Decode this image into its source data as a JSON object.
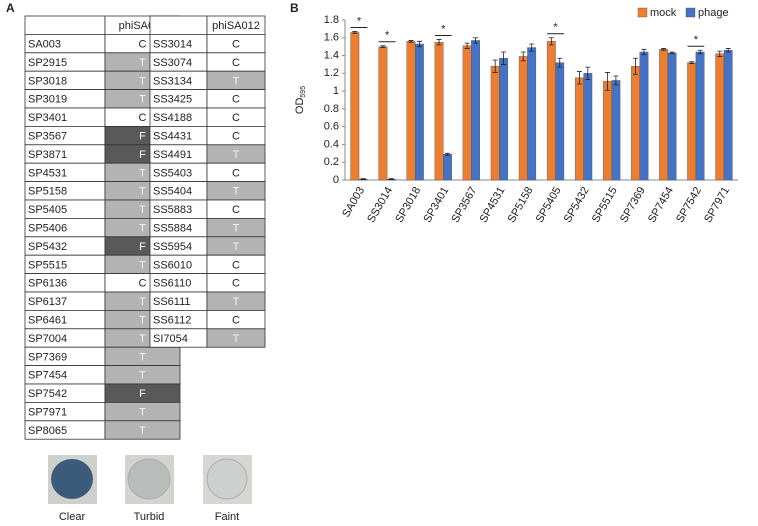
{
  "panel_a": {
    "label": "A",
    "header": "phiSA012",
    "shades": {
      "C": "#ffffff",
      "T": "#b3b3b3",
      "F": "#595959"
    },
    "table_left": [
      [
        "SA003",
        "C"
      ],
      [
        "SP2915",
        "T"
      ],
      [
        "SP3018",
        "T"
      ],
      [
        "SP3019",
        "T"
      ],
      [
        "SP3401",
        "C"
      ],
      [
        "SP3567",
        "F"
      ],
      [
        "SP3871",
        "F"
      ],
      [
        "SP4531",
        "T"
      ],
      [
        "SP5158",
        "T"
      ],
      [
        "SP5405",
        "T"
      ],
      [
        "SP5406",
        "T"
      ],
      [
        "SP5432",
        "F"
      ],
      [
        "SP5515",
        "T"
      ],
      [
        "SP6136",
        "C"
      ],
      [
        "SP6137",
        "T"
      ],
      [
        "SP6461",
        "T"
      ],
      [
        "SP7004",
        "T"
      ],
      [
        "SP7369",
        "T"
      ],
      [
        "SP7454",
        "T"
      ],
      [
        "SP7542",
        "F"
      ],
      [
        "SP7971",
        "T"
      ],
      [
        "SP8065",
        "T"
      ]
    ],
    "table_right": [
      [
        "SS3014",
        "C"
      ],
      [
        "SS3074",
        "C"
      ],
      [
        "SS3134",
        "T"
      ],
      [
        "SS3425",
        "C"
      ],
      [
        "SS4188",
        "C"
      ],
      [
        "SS4431",
        "C"
      ],
      [
        "SS4491",
        "T"
      ],
      [
        "SS5403",
        "C"
      ],
      [
        "SS5404",
        "T"
      ],
      [
        "SS5883",
        "C"
      ],
      [
        "SS5884",
        "T"
      ],
      [
        "SS5954",
        "T"
      ],
      [
        "SS6010",
        "C"
      ],
      [
        "SS6110",
        "C"
      ],
      [
        "SS6111",
        "T"
      ],
      [
        "SS6112",
        "C"
      ],
      [
        "SI7054",
        "T"
      ]
    ],
    "plaques": [
      "Clear",
      "Turbid",
      "Faint"
    ]
  },
  "chart_data": {
    "type": "bar",
    "panel_label": "B",
    "y_label": "OD",
    "y_label_sub": "595",
    "categories": [
      "SA003",
      "SS3014",
      "SP3018",
      "SP3401",
      "SP3567",
      "SP4531",
      "SP5158",
      "SP5405",
      "SP5432",
      "SP5515",
      "SP7369",
      "SP7454",
      "SP7542",
      "SP7971"
    ],
    "series": [
      {
        "name": "mock",
        "color": "#ed7d31",
        "values": [
          1.66,
          1.5,
          1.56,
          1.55,
          1.51,
          1.28,
          1.39,
          1.56,
          1.15,
          1.11,
          1.28,
          1.47,
          1.32,
          1.42
        ],
        "errors": [
          0.01,
          0.01,
          0.01,
          0.03,
          0.03,
          0.07,
          0.05,
          0.04,
          0.07,
          0.1,
          0.09,
          0.01,
          0.01,
          0.03
        ]
      },
      {
        "name": "phage",
        "color": "#4472c4",
        "values": [
          0.01,
          0.01,
          1.53,
          0.29,
          1.57,
          1.37,
          1.49,
          1.32,
          1.2,
          1.12,
          1.44,
          1.43,
          1.44,
          1.46
        ],
        "errors": [
          0.005,
          0.005,
          0.03,
          0.01,
          0.03,
          0.07,
          0.04,
          0.05,
          0.07,
          0.05,
          0.03,
          0.01,
          0.02,
          0.02
        ]
      }
    ],
    "ylim": [
      0,
      1.8
    ],
    "yticks": [
      0,
      0.2,
      0.4,
      0.6,
      0.8,
      1,
      1.2,
      1.4,
      1.6,
      1.8
    ],
    "grid": false,
    "legend": "top-right",
    "annotations": [
      {
        "text": "*",
        "category": "SA003"
      },
      {
        "text": "*",
        "category": "SS3014"
      },
      {
        "text": "*",
        "category": "SP3401"
      },
      {
        "text": "*",
        "category": "SP5405"
      },
      {
        "text": "*",
        "category": "SP7542"
      }
    ]
  }
}
